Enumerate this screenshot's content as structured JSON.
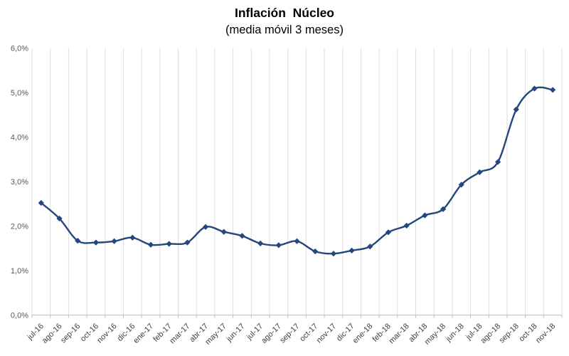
{
  "header": {
    "title": "Inflación  Núcleo",
    "subtitle": "(media móvil 3 meses)"
  },
  "chart_data": {
    "type": "line",
    "title": "Inflación  Núcleo",
    "subtitle": "(media móvil 3 meses)",
    "categories": [
      "jul-16",
      "ago-16",
      "sep-16",
      "oct-16",
      "nov-16",
      "dic-16",
      "ene-17",
      "feb-17",
      "mar-17",
      "abr-17",
      "may-17",
      "jun-17",
      "jul-17",
      "ago-17",
      "sep-17",
      "oct-17",
      "nov-17",
      "dic-17",
      "ene-18",
      "feb-18",
      "mar-18",
      "abr-18",
      "may-18",
      "jun-18",
      "jul-18",
      "ago-18",
      "sep-18",
      "oct-18",
      "nov-18"
    ],
    "series": [
      {
        "name": "Inflación núcleo (media móvil 3 meses)",
        "values": [
          2.52,
          2.17,
          1.67,
          1.63,
          1.66,
          1.74,
          1.58,
          1.6,
          1.63,
          1.98,
          1.87,
          1.78,
          1.61,
          1.57,
          1.66,
          1.43,
          1.38,
          1.45,
          1.54,
          1.86,
          2.01,
          2.24,
          2.38,
          2.93,
          3.21,
          3.44,
          4.62,
          5.09,
          5.06
        ]
      }
    ],
    "xlabel": "",
    "ylabel": "",
    "ylim": [
      0,
      6
    ],
    "ytick_step": 1,
    "ytick_labels": [
      "0,0%",
      "1,0%",
      "2,0%",
      "3,0%",
      "4,0%",
      "5,0%",
      "6,0%"
    ],
    "grid": "vertical-only",
    "legend": "none",
    "marker": "diamond",
    "smooth_line": true,
    "colors": {
      "line": "#24477D",
      "marker": "#24477D",
      "grid": "#DEDEDE",
      "axis": "#BFBFBF",
      "y_label": "#595959",
      "x_label": "#404040",
      "title": "#1A1A1A"
    }
  }
}
